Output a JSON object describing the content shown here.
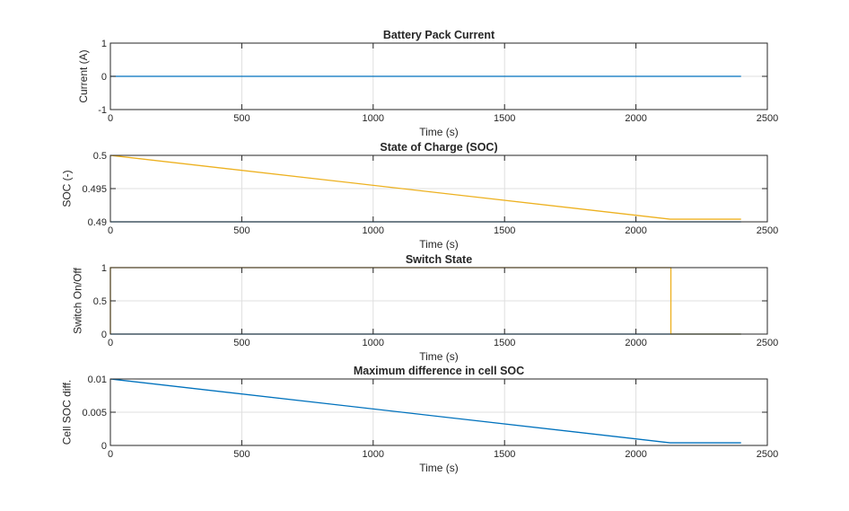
{
  "chart_data": [
    {
      "type": "line",
      "title": "Battery Pack Current",
      "xlabel": "Time (s)",
      "ylabel": "Current (A)",
      "xlim": [
        0,
        2500
      ],
      "ylim": [
        -1,
        1
      ],
      "xticks": [
        "0",
        "500",
        "1000",
        "1500",
        "2000",
        "2500"
      ],
      "xtick_values": [
        0,
        500,
        1000,
        1500,
        2000,
        2500
      ],
      "yticks": [
        "-1",
        "0",
        "1"
      ],
      "ytick_values": [
        -1,
        0,
        1
      ],
      "grid": true,
      "series": [
        {
          "color": "#0072BD",
          "x": [
            0,
            2400
          ],
          "y": [
            0,
            0
          ]
        }
      ]
    },
    {
      "type": "line",
      "title": "State of Charge (SOC)",
      "xlabel": "Time (s)",
      "ylabel": "SOC (-)",
      "xlim": [
        0,
        2500
      ],
      "ylim": [
        0.49,
        0.5
      ],
      "xticks": [
        "0",
        "500",
        "1000",
        "1500",
        "2000",
        "2500"
      ],
      "xtick_values": [
        0,
        500,
        1000,
        1500,
        2000,
        2500
      ],
      "yticks": [
        "0.49",
        "0.495",
        "0.5"
      ],
      "ytick_values": [
        0.49,
        0.495,
        0.5
      ],
      "grid": true,
      "series": [
        {
          "color": "#0072BD",
          "x": [
            0,
            2400
          ],
          "y": [
            0.49,
            0.49
          ]
        },
        {
          "color": "#EDB120",
          "x": [
            0,
            2130,
            2400
          ],
          "y": [
            0.5,
            0.4904,
            0.4904
          ]
        }
      ]
    },
    {
      "type": "line",
      "title": "Switch State",
      "xlabel": "Time (s)",
      "ylabel": "Switch On/Off",
      "xlim": [
        0,
        2500
      ],
      "ylim": [
        0,
        1
      ],
      "xticks": [
        "0",
        "500",
        "1000",
        "1500",
        "2000",
        "2500"
      ],
      "xtick_values": [
        0,
        500,
        1000,
        1500,
        2000,
        2500
      ],
      "yticks": [
        "0",
        "0.5",
        "1"
      ],
      "ytick_values": [
        0,
        0.5,
        1
      ],
      "grid": true,
      "series": [
        {
          "color": "#0072BD",
          "x": [
            0,
            2400
          ],
          "y": [
            0,
            0
          ]
        },
        {
          "color": "#EDB120",
          "x": [
            0,
            0,
            2133,
            2133,
            2400
          ],
          "y": [
            0,
            1,
            1,
            0,
            0
          ]
        }
      ]
    },
    {
      "type": "line",
      "title": "Maximum difference in cell SOC",
      "xlabel": "Time (s)",
      "ylabel": "Cell SOC diff.",
      "xlim": [
        0,
        2500
      ],
      "ylim": [
        0,
        0.01
      ],
      "xticks": [
        "0",
        "500",
        "1000",
        "1500",
        "2000",
        "2500"
      ],
      "xtick_values": [
        0,
        500,
        1000,
        1500,
        2000,
        2500
      ],
      "yticks": [
        "0",
        "0.005",
        "0.01"
      ],
      "ytick_values": [
        0,
        0.005,
        0.01
      ],
      "grid": true,
      "series": [
        {
          "color": "#0072BD",
          "x": [
            0,
            2130,
            2400
          ],
          "y": [
            0.01,
            0.0004,
            0.0004
          ]
        }
      ]
    }
  ]
}
